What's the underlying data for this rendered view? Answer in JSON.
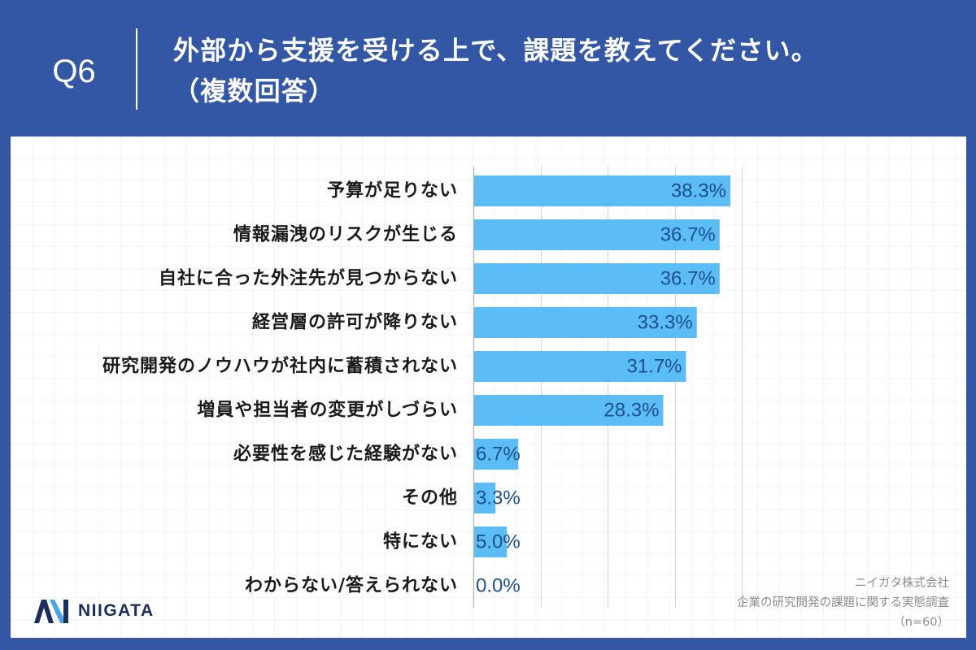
{
  "header": {
    "question_number": "Q6"
  },
  "colors": {
    "background": "#3357a5",
    "card": "#ffffff",
    "bar": "#5cbdf6",
    "value_label": "#1d4f8b",
    "category_label": "#1a1a1a",
    "axis": "#b0b0b0",
    "gridline": "#d4d4d4",
    "source_text": "#8c8c8c",
    "logo_navy": "#1b2d5b",
    "logo_blue": "#4aa3e6"
  },
  "chart_data": {
    "type": "bar",
    "orientation": "horizontal",
    "title": "外部から支援を受ける上で、課題を教えてください。",
    "subtitle": "（複数回答）",
    "categories": [
      "予算が足りない",
      "情報漏洩のリスクが生じる",
      "自社に合った外注先が見つからない",
      "経営層の許可が降りない",
      "研究開発のノウハウが社内に蓄積されない",
      "増員や担当者の変更がしづらい",
      "必要性を感じた経験がない",
      "その他",
      "特にない",
      "わからない/答えられない"
    ],
    "values": [
      38.3,
      36.7,
      36.7,
      33.3,
      31.7,
      28.3,
      6.7,
      3.3,
      5.0,
      0.0
    ],
    "data_labels": [
      "38.3%",
      "36.7%",
      "36.7%",
      "33.3%",
      "31.7%",
      "28.3%",
      "6.7%",
      "3.3%",
      "5.0%",
      "0.0%"
    ],
    "xlim": [
      0,
      40
    ],
    "x_gridlines": [
      10,
      20,
      30,
      40
    ],
    "grid": true
  },
  "logo": {
    "text": "NIIGATA",
    "icon": "niigata-logo-mark"
  },
  "source": {
    "company": "ニイガタ株式会社",
    "survey": "企業の研究開発の課題に関する実態調査",
    "sample_size": "（n=60）"
  }
}
